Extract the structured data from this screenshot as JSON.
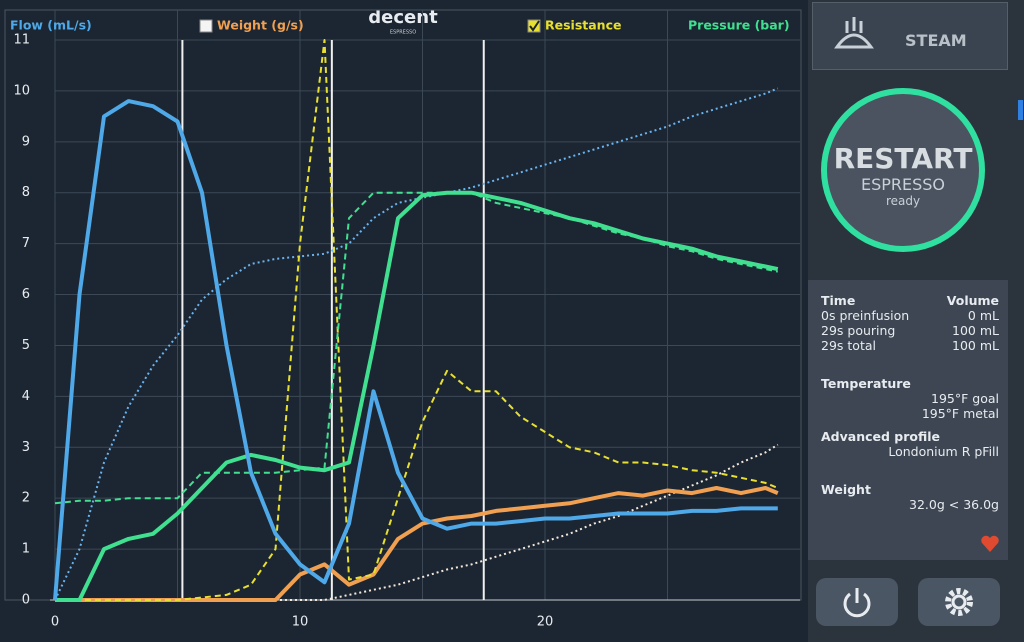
{
  "chart_data": {
    "type": "line",
    "x": [
      0,
      1,
      2,
      3,
      4,
      5,
      6,
      7,
      8,
      9,
      10,
      11,
      12,
      13,
      14,
      15,
      16,
      17,
      18,
      19,
      20,
      21,
      22,
      23,
      24,
      25,
      26,
      27,
      28,
      29,
      29.5
    ],
    "series": [
      {
        "name": "Flow (mL/s)",
        "color": "#4fa8e8",
        "style": "solid",
        "values": [
          0,
          6,
          9.5,
          9.8,
          9.7,
          9.4,
          8,
          5,
          2.5,
          1.3,
          0.7,
          0.35,
          1.5,
          4.1,
          2.5,
          1.6,
          1.4,
          1.5,
          1.5,
          1.55,
          1.6,
          1.6,
          1.65,
          1.7,
          1.7,
          1.7,
          1.75,
          1.75,
          1.8,
          1.8,
          1.8
        ]
      },
      {
        "name": "Weight (g/s)",
        "color": "#f0a050",
        "style": "solid",
        "checked": false,
        "values": [
          0,
          0,
          0,
          0,
          0,
          0,
          0,
          0,
          0,
          0,
          0.5,
          0.7,
          0.3,
          0.5,
          1.2,
          1.5,
          1.6,
          1.65,
          1.75,
          1.8,
          1.85,
          1.9,
          2.0,
          2.1,
          2.05,
          2.15,
          2.1,
          2.2,
          2.1,
          2.2,
          2.1
        ]
      },
      {
        "name": "Resistance",
        "color": "#e8e030",
        "style": "dashed",
        "checked": true,
        "values": [
          0,
          0,
          0,
          0,
          0,
          0,
          0.05,
          0.1,
          0.3,
          1.0,
          7,
          11,
          0.4,
          0.5,
          2,
          3.5,
          4.5,
          4.1,
          4.1,
          3.6,
          3.3,
          3.0,
          2.9,
          2.7,
          2.7,
          2.65,
          2.55,
          2.5,
          2.4,
          2.3,
          2.2
        ]
      },
      {
        "name": "Pressure (bar)",
        "color": "#40e090",
        "style": "solid",
        "values": [
          0,
          0,
          1,
          1.2,
          1.3,
          1.7,
          2.2,
          2.7,
          2.85,
          2.75,
          2.6,
          2.55,
          2.7,
          5,
          7.5,
          7.95,
          8,
          8,
          7.9,
          7.8,
          7.65,
          7.5,
          7.4,
          7.25,
          7.1,
          7.0,
          6.9,
          6.75,
          6.65,
          6.55,
          6.5
        ]
      },
      {
        "color": "#40e090",
        "style": "dashed",
        "values": [
          1.9,
          1.95,
          1.95,
          2,
          2,
          2,
          2.5,
          2.5,
          2.5,
          2.5,
          2.55,
          2.6,
          7.5,
          8,
          8,
          8,
          8,
          8,
          7.8,
          7.7,
          7.6,
          7.5,
          7.35,
          7.2,
          7.1,
          6.95,
          6.85,
          6.7,
          6.6,
          6.5,
          6.45
        ]
      },
      {
        "color": "#6ab4f0",
        "style": "dotted",
        "values": [
          0,
          1,
          2.7,
          3.8,
          4.6,
          5.2,
          5.9,
          6.3,
          6.6,
          6.7,
          6.75,
          6.8,
          7.0,
          7.5,
          7.8,
          7.9,
          8.0,
          8.1,
          8.25,
          8.4,
          8.55,
          8.7,
          8.85,
          9.0,
          9.15,
          9.3,
          9.5,
          9.65,
          9.8,
          9.95,
          10.05
        ]
      },
      {
        "color": "#f4e8dc",
        "style": "dotted",
        "values": [
          0,
          0,
          0,
          0,
          0,
          0,
          0,
          0,
          0,
          0,
          0,
          0,
          0.1,
          0.2,
          0.3,
          0.45,
          0.6,
          0.7,
          0.85,
          1.0,
          1.15,
          1.3,
          1.5,
          1.65,
          1.85,
          2.05,
          2.25,
          2.45,
          2.7,
          2.9,
          3.05
        ]
      }
    ],
    "xlim": [
      0,
      30
    ],
    "ylim": [
      0,
      11
    ],
    "xticks": [
      0,
      10,
      20
    ],
    "xgrid": [
      5,
      15,
      25
    ],
    "yticks": [
      0,
      1,
      2,
      3,
      4,
      5,
      6,
      7,
      8,
      9,
      10,
      11
    ],
    "grid": true,
    "phase_markers": [
      5.2,
      11.3,
      17.5
    ],
    "legend": "top"
  },
  "logo": {
    "brand": "decent",
    "sub": "ESPRESSO"
  },
  "sidebar": {
    "steam_button": "STEAM",
    "restart": {
      "title": "RESTART",
      "subtitle": "ESPRESSO",
      "status": "ready"
    },
    "stats": {
      "headers": [
        "Time",
        "Volume"
      ],
      "rows": [
        [
          "0s preinfusion",
          "0 mL"
        ],
        [
          "29s pouring",
          "100 mL"
        ],
        [
          "29s total",
          "100 mL"
        ]
      ]
    },
    "temperature": {
      "title": "Temperature",
      "lines": [
        "195°F goal",
        "195°F metal"
      ]
    },
    "profile": {
      "title": "Advanced profile",
      "name": "Londonium R pFill"
    },
    "weight": {
      "title": "Weight",
      "value": "32.0g < 36.0g"
    }
  }
}
